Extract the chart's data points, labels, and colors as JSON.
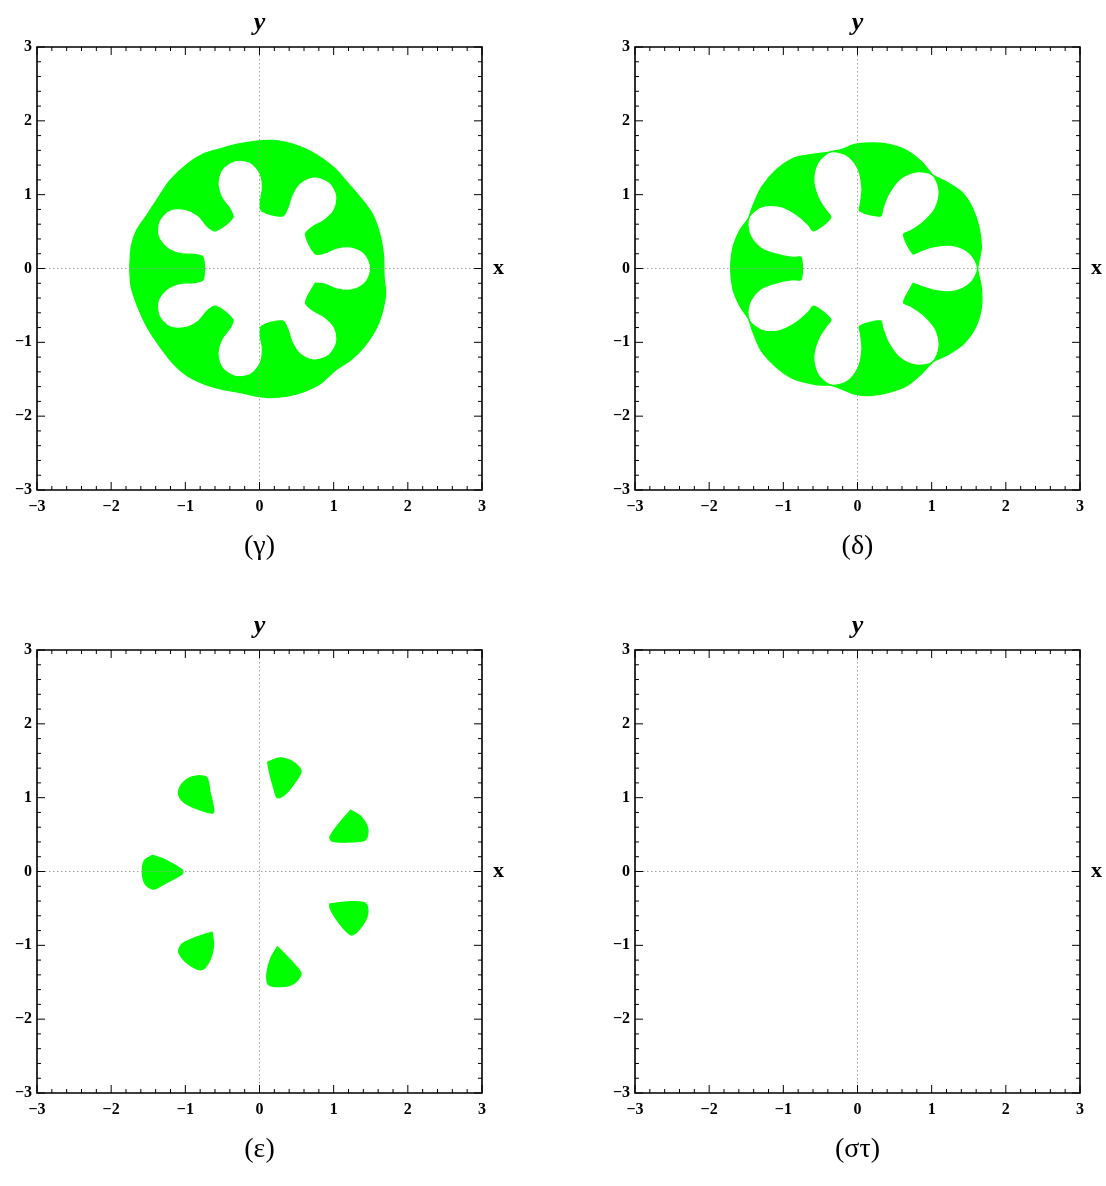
{
  "chart_data": [
    {
      "type": "area",
      "title": "(γ)",
      "xlim": [
        -3,
        3
      ],
      "ylim": [
        -3,
        3
      ],
      "xticks": [
        {
          "value": -3,
          "label": "−3"
        },
        {
          "value": -2.8,
          "label": null
        },
        {
          "value": -2.6,
          "label": null
        },
        {
          "value": -2.4,
          "label": null
        },
        {
          "value": -2.2,
          "label": null
        },
        {
          "value": -2,
          "label": "−2"
        },
        {
          "value": -1.8,
          "label": null
        },
        {
          "value": -1.6,
          "label": null
        },
        {
          "value": -1.4,
          "label": null
        },
        {
          "value": -1.2,
          "label": null
        },
        {
          "value": -1,
          "label": "−1"
        },
        {
          "value": -0.8,
          "label": null
        },
        {
          "value": -0.6,
          "label": null
        },
        {
          "value": -0.4,
          "label": null
        },
        {
          "value": -0.2,
          "label": null
        },
        0,
        {
          "value": 0.2,
          "label": null
        },
        {
          "value": 0.4,
          "label": null
        },
        {
          "value": 0.6,
          "label": null
        },
        {
          "value": 0.8,
          "label": null
        },
        1,
        {
          "value": 1.2,
          "label": null
        },
        {
          "value": 1.4,
          "label": null
        },
        {
          "value": 1.6,
          "label": null
        },
        {
          "value": 1.8,
          "label": null
        },
        2,
        {
          "value": 2.2,
          "label": null
        },
        {
          "value": 2.4,
          "label": null
        },
        {
          "value": 2.6,
          "label": null
        },
        {
          "value": 2.8,
          "label": null
        },
        3
      ],
      "yticks": [
        {
          "value": -3,
          "label": "−3"
        },
        {
          "value": -2.8,
          "label": null
        },
        {
          "value": -2.6,
          "label": null
        },
        {
          "value": -2.4,
          "label": null
        },
        {
          "value": -2.2,
          "label": null
        },
        {
          "value": -2,
          "label": "−2"
        },
        {
          "value": -1.8,
          "label": null
        },
        {
          "value": -1.6,
          "label": null
        },
        {
          "value": -1.4,
          "label": null
        },
        {
          "value": -1.2,
          "label": null
        },
        {
          "value": -1,
          "label": "−1"
        },
        {
          "value": -0.8,
          "label": null
        },
        {
          "value": -0.6,
          "label": null
        },
        {
          "value": -0.4,
          "label": null
        },
        {
          "value": -0.2,
          "label": null
        },
        0,
        {
          "value": 0.2,
          "label": null
        },
        {
          "value": 0.4,
          "label": null
        },
        {
          "value": 0.6,
          "label": null
        },
        {
          "value": 0.8,
          "label": null
        },
        1,
        {
          "value": 1.2,
          "label": null
        },
        {
          "value": 1.4,
          "label": null
        },
        {
          "value": 1.6,
          "label": null
        },
        {
          "value": 1.8,
          "label": null
        },
        2,
        {
          "value": 2.2,
          "label": null
        },
        {
          "value": 2.4,
          "label": null
        },
        {
          "value": 2.6,
          "label": null
        },
        {
          "value": 2.8,
          "label": null
        },
        3
      ],
      "ref_lines": [
        {
          "axis": "x",
          "value": 0,
          "label": "y",
          "color": "#a0a0a0",
          "line_style": "dotted"
        },
        {
          "axis": "y",
          "value": 0,
          "label": "x",
          "color": "#a0a0a0",
          "line_style": "dotted"
        }
      ],
      "series": [
        {
          "color": "#00ff00",
          "x": [
            -1.75,
            -1.73,
            -1.66,
            -1.52,
            -1.39,
            -1.21,
            -0.98,
            -0.76,
            -0.53,
            -0.31,
            -0.13,
            0.05,
            0.23,
            0.46,
            0.68,
            0.86,
            1.02,
            1.18,
            1.36,
            1.52,
            1.62,
            1.67,
            1.68,
            1.7,
            1.65,
            1.56,
            1.41,
            1.23,
            1.02,
            0.82,
            0.59,
            0.37,
            0.14,
            -0.04,
            -0.26,
            -0.53,
            -0.76,
            -0.98,
            -1.16,
            -1.34,
            -1.5,
            -1.64,
            -1.73
          ],
          "values": [
            0.0,
            0.29,
            0.51,
            0.72,
            0.92,
            1.19,
            1.41,
            1.55,
            1.62,
            1.68,
            1.71,
            1.73,
            1.73,
            1.68,
            1.59,
            1.48,
            1.35,
            1.17,
            0.96,
            0.74,
            0.47,
            0.2,
            -0.12,
            -0.34,
            -0.61,
            -0.84,
            -1.06,
            -1.24,
            -1.38,
            -1.56,
            -1.67,
            -1.73,
            -1.75,
            -1.73,
            -1.68,
            -1.63,
            -1.56,
            -1.45,
            -1.29,
            -1.06,
            -0.82,
            -0.52,
            -0.25
          ]
        },
        {
          "color": "#00ff00",
          "x": [
            0.75,
            0.88,
            1.05,
            1.25,
            1.43,
            1.5,
            1.43,
            1.25,
            1.05,
            0.88,
            0.75,
            0.62,
            0.71,
            0.87,
            1.01,
            1.04,
            0.94,
            0.74,
            0.55,
            0.44,
            0.38,
            0.31,
            0.03,
            0.01,
            0.04,
            0.01,
            -0.13,
            -0.33,
            -0.5,
            -0.56,
            -0.51,
            -0.4,
            -0.36,
            -0.59,
            -0.7,
            -0.82,
            -1.0,
            -1.21,
            -1.35,
            -1.37,
            -1.25,
            -1.07,
            -0.88,
            -0.76,
            -0.76,
            -0.88,
            -1.07,
            -1.25,
            -1.37,
            -1.35,
            -1.21,
            -1.0,
            -0.82,
            -0.7,
            -0.59,
            -0.36,
            -0.4,
            -0.51,
            -0.56,
            -0.5,
            -0.33,
            -0.13,
            0.01,
            0.04,
            0.01,
            0.03,
            0.31,
            0.38,
            0.44,
            0.55,
            0.74,
            0.94,
            1.04,
            1.01,
            0.87,
            0.71,
            0.62
          ],
          "values": [
            -0.2,
            -0.21,
            -0.28,
            -0.29,
            -0.19,
            0,
            0.19,
            0.29,
            0.28,
            0.21,
            0.2,
            0.46,
            0.56,
            0.65,
            0.8,
            1.0,
            1.17,
            1.24,
            1.16,
            1.0,
            0.82,
            0.71,
            0.78,
            0.9,
            1.09,
            1.28,
            1.44,
            1.46,
            1.35,
            1.15,
            0.96,
            0.81,
            0.69,
            0.51,
            0.57,
            0.71,
            0.8,
            0.79,
            0.65,
            0.45,
            0.28,
            0.2,
            0.19,
            0.15,
            -0.15,
            -0.19,
            -0.2,
            -0.28,
            -0.45,
            -0.65,
            -0.79,
            -0.8,
            -0.71,
            -0.57,
            -0.51,
            -0.69,
            -0.81,
            -0.96,
            -1.15,
            -1.35,
            -1.46,
            -1.44,
            -1.28,
            -1.09,
            -0.9,
            -0.78,
            -0.71,
            -0.82,
            -1.0,
            -1.16,
            -1.24,
            -1.17,
            -1.0,
            -0.8,
            -0.65,
            -0.56,
            -0.46
          ]
        }
      ]
    },
    {
      "type": "area",
      "title": "(δ)",
      "xlim": [
        -3,
        3
      ],
      "ylim": [
        -3,
        3
      ],
      "xticks": [
        {
          "value": -3,
          "label": "−3"
        },
        {
          "value": -2.8,
          "label": null
        },
        {
          "value": -2.6,
          "label": null
        },
        {
          "value": -2.4,
          "label": null
        },
        {
          "value": -2.2,
          "label": null
        },
        {
          "value": -2,
          "label": "−2"
        },
        {
          "value": -1.8,
          "label": null
        },
        {
          "value": -1.6,
          "label": null
        },
        {
          "value": -1.4,
          "label": null
        },
        {
          "value": -1.2,
          "label": null
        },
        {
          "value": -1,
          "label": "−1"
        },
        {
          "value": -0.8,
          "label": null
        },
        {
          "value": -0.6,
          "label": null
        },
        {
          "value": -0.4,
          "label": null
        },
        {
          "value": -0.2,
          "label": null
        },
        0,
        {
          "value": 0.2,
          "label": null
        },
        {
          "value": 0.4,
          "label": null
        },
        {
          "value": 0.6,
          "label": null
        },
        {
          "value": 0.8,
          "label": null
        },
        1,
        {
          "value": 1.2,
          "label": null
        },
        {
          "value": 1.4,
          "label": null
        },
        {
          "value": 1.6,
          "label": null
        },
        {
          "value": 1.8,
          "label": null
        },
        2,
        {
          "value": 2.2,
          "label": null
        },
        {
          "value": 2.4,
          "label": null
        },
        {
          "value": 2.6,
          "label": null
        },
        {
          "value": 2.8,
          "label": null
        },
        3
      ],
      "yticks": [
        {
          "value": -3,
          "label": "−3"
        },
        {
          "value": -2.8,
          "label": null
        },
        {
          "value": -2.6,
          "label": null
        },
        {
          "value": -2.4,
          "label": null
        },
        {
          "value": -2.2,
          "label": null
        },
        {
          "value": -2,
          "label": "−2"
        },
        {
          "value": -1.8,
          "label": null
        },
        {
          "value": -1.6,
          "label": null
        },
        {
          "value": -1.4,
          "label": null
        },
        {
          "value": -1.2,
          "label": null
        },
        {
          "value": -1,
          "label": "−1"
        },
        {
          "value": -0.8,
          "label": null
        },
        {
          "value": -0.6,
          "label": null
        },
        {
          "value": -0.4,
          "label": null
        },
        {
          "value": -0.2,
          "label": null
        },
        0,
        {
          "value": 0.2,
          "label": null
        },
        {
          "value": 0.4,
          "label": null
        },
        {
          "value": 0.6,
          "label": null
        },
        {
          "value": 0.8,
          "label": null
        },
        1,
        {
          "value": 1.2,
          "label": null
        },
        {
          "value": 1.4,
          "label": null
        },
        {
          "value": 1.6,
          "label": null
        },
        {
          "value": 1.8,
          "label": null
        },
        2,
        {
          "value": 2.2,
          "label": null
        },
        {
          "value": 2.4,
          "label": null
        },
        {
          "value": 2.6,
          "label": null
        },
        {
          "value": 2.8,
          "label": null
        },
        3
      ],
      "ref_lines": [
        {
          "axis": "x",
          "value": 0,
          "label": "y",
          "color": "#a0a0a0",
          "line_style": "dotted"
        },
        {
          "axis": "y",
          "value": 0,
          "label": "x",
          "color": "#a0a0a0",
          "line_style": "dotted"
        }
      ],
      "series": [
        {
          "color": "#00ff00",
          "x": [
            1.62,
            1.63,
            1.67,
            1.64,
            1.55,
            1.41,
            1.22,
            1.06,
            1.01,
            0.97,
            0.86,
            0.64,
            0.37,
            0.17,
            -0.04,
            -0.22,
            -0.33,
            -0.36,
            -0.42,
            -0.58,
            -0.85,
            -1.09,
            -1.3,
            -1.41,
            -1.45,
            -1.46,
            -1.49,
            -1.59,
            -1.68,
            -1.71,
            -1.68,
            -1.59,
            -1.49,
            -1.46,
            -1.45,
            -1.41,
            -1.3,
            -1.09,
            -0.85,
            -0.58,
            -0.42,
            -0.36,
            -0.33,
            -0.22,
            -0.04,
            0.17,
            0.41,
            0.66,
            0.86,
            0.97,
            1.01,
            1.06,
            1.23,
            1.43,
            1.59,
            1.67,
            1.67,
            1.63
          ],
          "values": [
            0.0,
            0.07,
            0.28,
            0.55,
            0.82,
            1.03,
            1.16,
            1.24,
            1.27,
            1.32,
            1.45,
            1.61,
            1.69,
            1.7,
            1.68,
            1.61,
            1.59,
            1.58,
            1.57,
            1.55,
            1.5,
            1.34,
            1.09,
            0.85,
            0.74,
            0.7,
            0.65,
            0.51,
            0.28,
            0.0,
            -0.28,
            -0.5,
            -0.65,
            -0.7,
            -0.74,
            -0.86,
            -1.11,
            -1.34,
            -1.5,
            -1.57,
            -1.58,
            -1.58,
            -1.59,
            -1.63,
            -1.7,
            -1.72,
            -1.68,
            -1.59,
            -1.43,
            -1.31,
            -1.27,
            -1.24,
            -1.16,
            -1.02,
            -0.8,
            -0.53,
            -0.26,
            -0.07
          ]
        },
        {
          "color": "#00ff00",
          "x": [
            0.75,
            0.85,
            1.05,
            1.3,
            1.52,
            1.62,
            1.52,
            1.3,
            1.05,
            0.85,
            0.75,
            0.62,
            0.72,
            0.89,
            1.05,
            1.1,
            1.01,
            0.79,
            0.57,
            0.42,
            0.34,
            0.31,
            0.03,
            0.04,
            0.06,
            0.01,
            -0.14,
            -0.36,
            -0.53,
            -0.59,
            -0.53,
            -0.42,
            -0.36,
            -0.59,
            -0.66,
            -0.82,
            -1.04,
            -1.28,
            -1.46,
            -1.46,
            -1.31,
            -1.08,
            -0.87,
            -0.76,
            -0.76,
            -0.87,
            -1.08,
            -1.31,
            -1.46,
            -1.46,
            -1.28,
            -1.04,
            -0.82,
            -0.66,
            -0.59,
            -0.36,
            -0.42,
            -0.53,
            -0.59,
            -0.53,
            -0.36,
            -0.14,
            0.01,
            0.06,
            0.04,
            0.03,
            0.31,
            0.34,
            0.42,
            0.57,
            0.79,
            1.01,
            1.1,
            1.05,
            0.89,
            0.72,
            0.62
          ],
          "values": [
            -0.2,
            -0.24,
            -0.3,
            -0.31,
            -0.2,
            0,
            0.2,
            0.31,
            0.3,
            0.24,
            0.2,
            0.46,
            0.51,
            0.63,
            0.82,
            1.06,
            1.27,
            1.31,
            1.21,
            1.01,
            0.81,
            0.71,
            0.78,
            0.88,
            1.09,
            1.34,
            1.53,
            1.58,
            1.44,
            1.2,
            0.96,
            0.78,
            0.69,
            0.51,
            0.59,
            0.73,
            0.84,
            0.84,
            0.7,
            0.48,
            0.28,
            0.19,
            0.15,
            0.15,
            -0.15,
            -0.15,
            -0.19,
            -0.28,
            -0.48,
            -0.7,
            -0.84,
            -0.84,
            -0.73,
            -0.59,
            -0.51,
            -0.69,
            -0.78,
            -0.96,
            -1.2,
            -1.44,
            -1.58,
            -1.53,
            -1.34,
            -1.09,
            -0.88,
            -0.78,
            -0.71,
            -0.81,
            -1.01,
            -1.21,
            -1.31,
            -1.27,
            -1.06,
            -0.82,
            -0.63,
            -0.51,
            -0.46
          ]
        }
      ]
    },
    {
      "type": "area",
      "title": "(ε)",
      "xlim": [
        -3,
        3
      ],
      "ylim": [
        -3,
        3
      ],
      "xticks": [
        {
          "value": -3,
          "label": "−3"
        },
        {
          "value": -2.8,
          "label": null
        },
        {
          "value": -2.6,
          "label": null
        },
        {
          "value": -2.4,
          "label": null
        },
        {
          "value": -2.2,
          "label": null
        },
        {
          "value": -2,
          "label": "−2"
        },
        {
          "value": -1.8,
          "label": null
        },
        {
          "value": -1.6,
          "label": null
        },
        {
          "value": -1.4,
          "label": null
        },
        {
          "value": -1.2,
          "label": null
        },
        {
          "value": -1,
          "label": "−1"
        },
        {
          "value": -0.8,
          "label": null
        },
        {
          "value": -0.6,
          "label": null
        },
        {
          "value": -0.4,
          "label": null
        },
        {
          "value": -0.2,
          "label": null
        },
        0,
        {
          "value": 0.2,
          "label": null
        },
        {
          "value": 0.4,
          "label": null
        },
        {
          "value": 0.6,
          "label": null
        },
        {
          "value": 0.8,
          "label": null
        },
        1,
        {
          "value": 1.2,
          "label": null
        },
        {
          "value": 1.4,
          "label": null
        },
        {
          "value": 1.6,
          "label": null
        },
        {
          "value": 1.8,
          "label": null
        },
        2,
        {
          "value": 2.2,
          "label": null
        },
        {
          "value": 2.4,
          "label": null
        },
        {
          "value": 2.6,
          "label": null
        },
        {
          "value": 2.8,
          "label": null
        },
        3
      ],
      "yticks": [
        {
          "value": -3,
          "label": "−3"
        },
        {
          "value": -2.8,
          "label": null
        },
        {
          "value": -2.6,
          "label": null
        },
        {
          "value": -2.4,
          "label": null
        },
        {
          "value": -2.2,
          "label": null
        },
        {
          "value": -2,
          "label": "−2"
        },
        {
          "value": -1.8,
          "label": null
        },
        {
          "value": -1.6,
          "label": null
        },
        {
          "value": -1.4,
          "label": null
        },
        {
          "value": -1.2,
          "label": null
        },
        {
          "value": -1,
          "label": "−1"
        },
        {
          "value": -0.8,
          "label": null
        },
        {
          "value": -0.6,
          "label": null
        },
        {
          "value": -0.4,
          "label": null
        },
        {
          "value": -0.2,
          "label": null
        },
        0,
        {
          "value": 0.2,
          "label": null
        },
        {
          "value": 0.4,
          "label": null
        },
        {
          "value": 0.6,
          "label": null
        },
        {
          "value": 0.8,
          "label": null
        },
        1,
        {
          "value": 1.2,
          "label": null
        },
        {
          "value": 1.4,
          "label": null
        },
        {
          "value": 1.6,
          "label": null
        },
        {
          "value": 1.8,
          "label": null
        },
        2,
        {
          "value": 2.2,
          "label": null
        },
        {
          "value": 2.4,
          "label": null
        },
        {
          "value": 2.6,
          "label": null
        },
        {
          "value": 2.8,
          "label": null
        },
        3
      ],
      "ref_lines": [
        {
          "axis": "x",
          "value": 0,
          "label": "y",
          "color": "#a0a0a0",
          "line_style": "dotted"
        },
        {
          "axis": "y",
          "value": 0,
          "label": "x",
          "color": "#a0a0a0",
          "line_style": "dotted"
        }
      ],
      "series": [
        {
          "color": "#00ff00",
          "x": [
            0.11,
            0.28,
            0.46,
            0.56,
            0.48,
            0.35,
            0.24,
            0.19,
            0.14
          ],
          "values": [
            1.48,
            1.54,
            1.48,
            1.36,
            1.21,
            1.05,
            1.0,
            1.14,
            1.32
          ]
        },
        {
          "color": "#00ff00",
          "x": [
            1.23,
            1.37,
            1.46,
            1.43,
            1.23,
            0.98,
            0.95,
            1.09
          ],
          "values": [
            0.83,
            0.74,
            0.58,
            0.43,
            0.4,
            0.41,
            0.47,
            0.67
          ]
        },
        {
          "color": "#00ff00",
          "x": [
            0.95,
            1.23,
            1.43,
            1.46,
            1.38,
            1.25,
            1.16,
            1.02,
            0.95
          ],
          "values": [
            -0.44,
            -0.41,
            -0.43,
            -0.57,
            -0.74,
            -0.86,
            -0.8,
            -0.62,
            -0.49
          ]
        },
        {
          "color": "#00ff00",
          "x": [
            0.24,
            0.37,
            0.5,
            0.56,
            0.46,
            0.28,
            0.12,
            0.1,
            0.15
          ],
          "values": [
            -1.02,
            -1.15,
            -1.29,
            -1.39,
            -1.52,
            -1.56,
            -1.53,
            -1.38,
            -1.18
          ]
        },
        {
          "color": "#00ff00",
          "x": [
            -0.64,
            -0.62,
            -0.67,
            -0.78,
            -0.95,
            -1.09,
            -1.04,
            -0.85
          ],
          "values": [
            -0.82,
            -1.0,
            -1.2,
            -1.33,
            -1.26,
            -1.09,
            -0.98,
            -0.89
          ]
        },
        {
          "color": "#00ff00",
          "x": [
            -1.44,
            -1.3,
            -1.04,
            -1.04,
            -1.27,
            -1.43,
            -1.54,
            -1.58,
            -1.55
          ],
          "values": [
            0.22,
            0.17,
            0.02,
            -0.03,
            -0.16,
            -0.24,
            -0.17,
            -0.01,
            0.15
          ]
        },
        {
          "color": "#00ff00",
          "x": [
            -0.82,
            -0.71,
            -0.67,
            -0.62,
            -0.76,
            -0.98,
            -1.09,
            -1.05,
            -0.94
          ],
          "values": [
            1.3,
            1.27,
            1.09,
            0.8,
            0.82,
            0.91,
            1.04,
            1.18,
            1.27
          ]
        }
      ]
    },
    {
      "type": "area",
      "title": "(στ)",
      "xlim": [
        -3,
        3
      ],
      "ylim": [
        -3,
        3
      ],
      "xticks": [
        {
          "value": -3,
          "label": "−3"
        },
        {
          "value": -2.8,
          "label": null
        },
        {
          "value": -2.6,
          "label": null
        },
        {
          "value": -2.4,
          "label": null
        },
        {
          "value": -2.2,
          "label": null
        },
        {
          "value": -2,
          "label": "−2"
        },
        {
          "value": -1.8,
          "label": null
        },
        {
          "value": -1.6,
          "label": null
        },
        {
          "value": -1.4,
          "label": null
        },
        {
          "value": -1.2,
          "label": null
        },
        {
          "value": -1,
          "label": "−1"
        },
        {
          "value": -0.8,
          "label": null
        },
        {
          "value": -0.6,
          "label": null
        },
        {
          "value": -0.4,
          "label": null
        },
        {
          "value": -0.2,
          "label": null
        },
        0,
        {
          "value": 0.2,
          "label": null
        },
        {
          "value": 0.4,
          "label": null
        },
        {
          "value": 0.6,
          "label": null
        },
        {
          "value": 0.8,
          "label": null
        },
        1,
        {
          "value": 1.2,
          "label": null
        },
        {
          "value": 1.4,
          "label": null
        },
        {
          "value": 1.6,
          "label": null
        },
        {
          "value": 1.8,
          "label": null
        },
        2,
        {
          "value": 2.2,
          "label": null
        },
        {
          "value": 2.4,
          "label": null
        },
        {
          "value": 2.6,
          "label": null
        },
        {
          "value": 2.8,
          "label": null
        },
        3
      ],
      "yticks": [
        {
          "value": -3,
          "label": "−3"
        },
        {
          "value": -2.8,
          "label": null
        },
        {
          "value": -2.6,
          "label": null
        },
        {
          "value": -2.4,
          "label": null
        },
        {
          "value": -2.2,
          "label": null
        },
        {
          "value": -2,
          "label": "−2"
        },
        {
          "value": -1.8,
          "label": null
        },
        {
          "value": -1.6,
          "label": null
        },
        {
          "value": -1.4,
          "label": null
        },
        {
          "value": -1.2,
          "label": null
        },
        {
          "value": -1,
          "label": "−1"
        },
        {
          "value": -0.8,
          "label": null
        },
        {
          "value": -0.6,
          "label": null
        },
        {
          "value": -0.4,
          "label": null
        },
        {
          "value": -0.2,
          "label": null
        },
        0,
        {
          "value": 0.2,
          "label": null
        },
        {
          "value": 0.4,
          "label": null
        },
        {
          "value": 0.6,
          "label": null
        },
        {
          "value": 0.8,
          "label": null
        },
        1,
        {
          "value": 1.2,
          "label": null
        },
        {
          "value": 1.4,
          "label": null
        },
        {
          "value": 1.6,
          "label": null
        },
        {
          "value": 1.8,
          "label": null
        },
        2,
        {
          "value": 2.2,
          "label": null
        },
        {
          "value": 2.4,
          "label": null
        },
        {
          "value": 2.6,
          "label": null
        },
        {
          "value": 2.8,
          "label": null
        },
        3
      ],
      "ref_lines": [
        {
          "axis": "x",
          "value": 0,
          "label": "y",
          "color": "#a0a0a0",
          "line_style": "dotted"
        },
        {
          "axis": "y",
          "value": 0,
          "label": "x",
          "color": "#a0a0a0",
          "line_style": "dotted"
        }
      ]
    }
  ]
}
